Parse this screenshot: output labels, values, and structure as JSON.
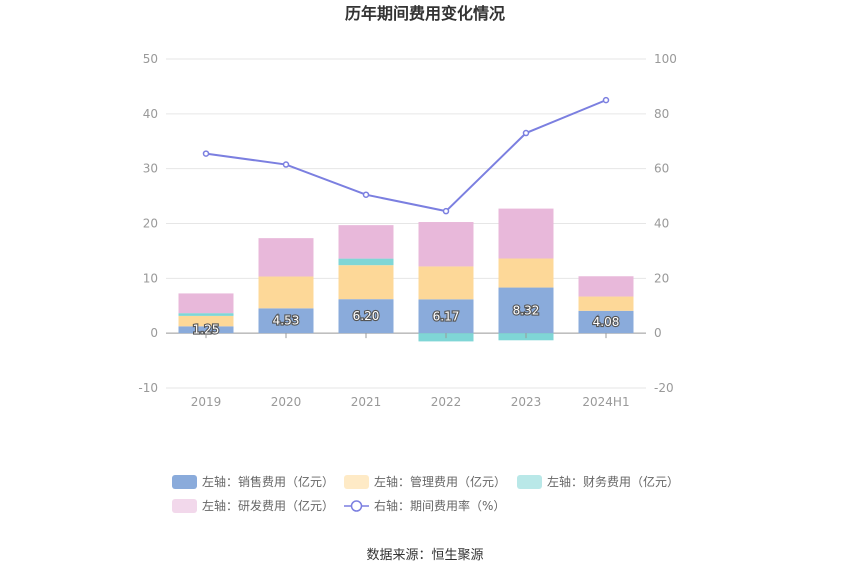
{
  "chart_data": {
    "type": "bar",
    "title": "历年期间费用变化情况",
    "categories": [
      "2019",
      "2020",
      "2021",
      "2022",
      "2023",
      "2024H1"
    ],
    "y_left": {
      "min": -10,
      "max": 50,
      "ticks": [
        "-10",
        "0",
        "10",
        "20",
        "30",
        "40",
        "50"
      ]
    },
    "y_right": {
      "min": -20,
      "max": 100,
      "ticks": [
        "-20",
        "0",
        "20",
        "40",
        "60",
        "80",
        "100"
      ]
    },
    "series": [
      {
        "name": "左轴：销售费用（亿元）",
        "axis": "left",
        "kind": "bar",
        "color": "#8aabdb",
        "values": [
          1.25,
          4.53,
          6.2,
          6.17,
          8.32,
          4.08
        ],
        "labels": [
          "1.25",
          "4.53",
          "6.20",
          "6.17",
          "8.32",
          "4.08"
        ]
      },
      {
        "name": "左轴：管理费用（亿元）",
        "axis": "left",
        "kind": "bar",
        "color": "#fdd898",
        "values": [
          1.9,
          5.8,
          6.2,
          6.0,
          5.3,
          2.6
        ]
      },
      {
        "name": "左轴：财务费用（亿元）",
        "axis": "left",
        "kind": "bar",
        "color": "#7fd6d6",
        "values": [
          0.5,
          0.0,
          1.2,
          -1.5,
          -1.3,
          0.0
        ]
      },
      {
        "name": "左轴：研发费用（亿元）",
        "axis": "left",
        "kind": "bar",
        "color": "#e8b8da",
        "values": [
          3.6,
          7.0,
          6.1,
          8.1,
          9.1,
          3.7
        ]
      },
      {
        "name": "右轴：期间费用率（%）",
        "axis": "right",
        "kind": "line",
        "color": "#7b7fe0",
        "values": [
          65.5,
          61.5,
          50.5,
          44.5,
          73.0,
          85.0
        ]
      }
    ],
    "legend_position": "bottom",
    "grid": true
  },
  "source": "数据来源：恒生聚源"
}
